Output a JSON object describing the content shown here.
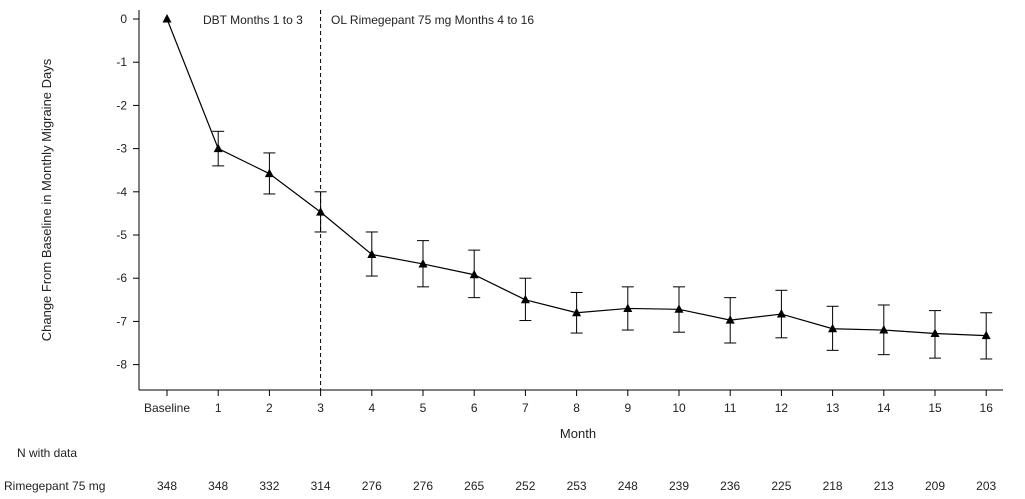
{
  "chart_data": {
    "type": "line",
    "ylabel": "Change From Baseline in Monthly Migraine Days",
    "xlabel": "Month",
    "categories": [
      "Baseline",
      "1",
      "2",
      "3",
      "4",
      "5",
      "6",
      "7",
      "8",
      "9",
      "10",
      "11",
      "12",
      "13",
      "14",
      "15",
      "16"
    ],
    "ylim": [
      -8.5,
      0.2
    ],
    "yticks": [
      0,
      -1,
      -2,
      -3,
      -4,
      -5,
      -6,
      -7,
      -8
    ],
    "grid": false,
    "series": [
      {
        "name": "Rimegepant 75 mg",
        "marker": "triangle",
        "color": "#000000",
        "values": [
          0,
          -3.0,
          -3.58,
          -4.47,
          -5.45,
          -5.67,
          -5.92,
          -6.5,
          -6.8,
          -6.7,
          -6.72,
          -6.97,
          -6.83,
          -7.17,
          -7.2,
          -7.28,
          -7.33
        ],
        "err_low": [
          null,
          -3.4,
          -4.05,
          -4.93,
          -5.95,
          -6.2,
          -6.45,
          -6.98,
          -7.27,
          -7.2,
          -7.25,
          -7.5,
          -7.38,
          -7.67,
          -7.77,
          -7.85,
          -7.87
        ],
        "err_high": [
          null,
          -2.6,
          -3.1,
          -4.0,
          -4.93,
          -5.13,
          -5.35,
          -6.0,
          -6.33,
          -6.2,
          -6.2,
          -6.45,
          -6.28,
          -6.65,
          -6.62,
          -6.75,
          -6.8
        ]
      }
    ],
    "phase_divider_at": "3",
    "annotations": [
      "DBT Months 1 to 3",
      "OL Rimegepant 75 mg Months 4 to 16"
    ],
    "n_table": {
      "header": "N with data",
      "row_label": "Rimegepant 75 mg",
      "values": [
        "348",
        "348",
        "332",
        "314",
        "276",
        "276",
        "265",
        "252",
        "253",
        "248",
        "239",
        "236",
        "225",
        "218",
        "213",
        "209",
        "203"
      ]
    }
  }
}
